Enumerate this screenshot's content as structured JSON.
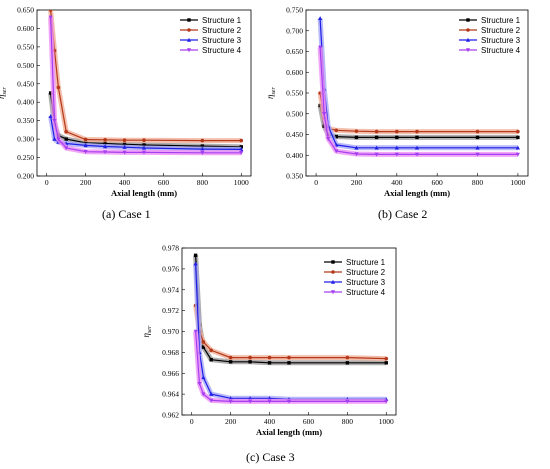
{
  "series_colors": [
    "#000000",
    "#b5381a",
    "#1f1fe6",
    "#a33ff0"
  ],
  "band_colors": [
    "#9a9a9a",
    "#f0b09a",
    "#a7a7f7",
    "#ef8ff5"
  ],
  "legend": [
    "Structure 1",
    "Structure 2",
    "Structure 3",
    "Structure 4"
  ],
  "chart_data": [
    {
      "type": "line",
      "caption": "(a) Case 1",
      "xlabel": "Axial length (mm)",
      "ylabel": "η",
      "ylabel_sub": "ser",
      "xlim": [
        -50,
        1050
      ],
      "ylim": [
        0.2,
        0.65
      ],
      "xticks": [
        0,
        200,
        400,
        600,
        800,
        1000
      ],
      "yticks": [
        0.2,
        0.25,
        0.3,
        0.35,
        0.4,
        0.45,
        0.5,
        0.55,
        0.6,
        0.65
      ],
      "ytick_labels": [
        "0.200",
        "0.250",
        "0.300",
        "0.350",
        "0.400",
        "0.450",
        "0.500",
        "0.550",
        "0.600",
        "0.650"
      ],
      "x": [
        20,
        40,
        60,
        100,
        200,
        300,
        400,
        500,
        800,
        1000
      ],
      "series": [
        {
          "name": "Structure 1",
          "values": [
            0.425,
            0.34,
            0.31,
            0.3,
            0.29,
            0.288,
            0.286,
            0.284,
            0.281,
            0.279
          ]
        },
        {
          "name": "Structure 2",
          "values": [
            0.65,
            0.54,
            0.44,
            0.32,
            0.299,
            0.298,
            0.297,
            0.297,
            0.296,
            0.296
          ]
        },
        {
          "name": "Structure 3",
          "values": [
            0.362,
            0.3,
            0.292,
            0.288,
            0.283,
            0.28,
            0.278,
            0.276,
            0.273,
            0.272
          ]
        },
        {
          "name": "Structure 4",
          "values": [
            0.63,
            0.35,
            0.3,
            0.276,
            0.266,
            0.265,
            0.264,
            0.264,
            0.263,
            0.263
          ]
        }
      ]
    },
    {
      "type": "line",
      "caption": "(b) Case 2",
      "xlabel": "Axial length (mm)",
      "ylabel": "η",
      "ylabel_sub": "ser",
      "xlim": [
        -50,
        1050
      ],
      "ylim": [
        0.35,
        0.75
      ],
      "xticks": [
        0,
        200,
        400,
        600,
        800,
        1000
      ],
      "yticks": [
        0.35,
        0.4,
        0.45,
        0.5,
        0.55,
        0.6,
        0.65,
        0.7,
        0.75
      ],
      "ytick_labels": [
        "0.350",
        "0.400",
        "0.450",
        "0.500",
        "0.550",
        "0.600",
        "0.650",
        "0.700",
        "0.750"
      ],
      "x": [
        20,
        40,
        60,
        100,
        200,
        300,
        400,
        500,
        800,
        1000
      ],
      "series": [
        {
          "name": "Structure 1",
          "values": [
            0.52,
            0.47,
            0.45,
            0.445,
            0.443,
            0.443,
            0.443,
            0.443,
            0.443,
            0.443
          ]
        },
        {
          "name": "Structure 2",
          "values": [
            0.55,
            0.49,
            0.465,
            0.46,
            0.458,
            0.457,
            0.457,
            0.457,
            0.457,
            0.457
          ]
        },
        {
          "name": "Structure 3",
          "values": [
            0.73,
            0.56,
            0.47,
            0.425,
            0.418,
            0.418,
            0.418,
            0.418,
            0.418,
            0.418
          ]
        },
        {
          "name": "Structure 4",
          "values": [
            0.66,
            0.5,
            0.44,
            0.41,
            0.403,
            0.402,
            0.402,
            0.402,
            0.402,
            0.402
          ]
        }
      ]
    },
    {
      "type": "line",
      "caption": "(c) Case 3",
      "xlabel": "Axial length (mm)",
      "ylabel": "η",
      "ylabel_sub": "ser",
      "xlim": [
        -50,
        1050
      ],
      "ylim": [
        0.962,
        0.978
      ],
      "xticks": [
        0,
        200,
        400,
        600,
        800,
        1000
      ],
      "yticks": [
        0.962,
        0.964,
        0.966,
        0.968,
        0.97,
        0.972,
        0.974,
        0.976,
        0.978
      ],
      "ytick_labels": [
        "0.962",
        "0.964",
        "0.966",
        "0.968",
        "0.970",
        "0.972",
        "0.974",
        "0.976",
        "0.978"
      ],
      "x": [
        20,
        40,
        60,
        100,
        200,
        300,
        400,
        500,
        800,
        1000
      ],
      "series": [
        {
          "name": "Structure 1",
          "values": [
            0.9773,
            0.9706,
            0.9685,
            0.9673,
            0.9671,
            0.9671,
            0.967,
            0.967,
            0.967,
            0.967
          ]
        },
        {
          "name": "Structure 2",
          "values": [
            0.9725,
            0.97,
            0.969,
            0.9682,
            0.9675,
            0.9675,
            0.9675,
            0.9675,
            0.9675,
            0.9674
          ]
        },
        {
          "name": "Structure 3",
          "values": [
            0.9765,
            0.968,
            0.9656,
            0.964,
            0.9636,
            0.9636,
            0.9636,
            0.9635,
            0.9635,
            0.9635
          ]
        },
        {
          "name": "Structure 4",
          "values": [
            0.97,
            0.965,
            0.964,
            0.9634,
            0.9633,
            0.9633,
            0.9633,
            0.9633,
            0.9633,
            0.9633
          ]
        }
      ]
    }
  ]
}
